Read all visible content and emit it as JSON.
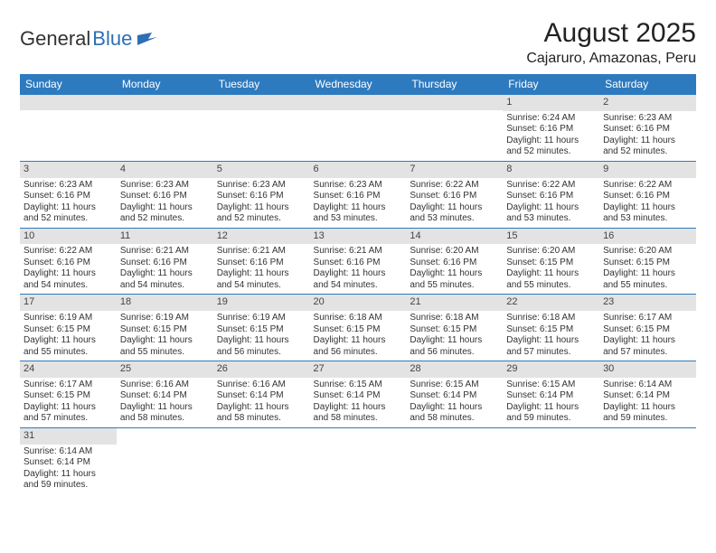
{
  "brand": {
    "part1": "General",
    "part2": "Blue"
  },
  "title": "August 2025",
  "location": "Cajaruro, Amazonas, Peru",
  "colors": {
    "header_bg": "#2d7abf",
    "header_text": "#ffffff",
    "grid_line": "#2d7abf",
    "daynum_bg": "#e3e3e3",
    "brand_blue": "#2d6fb5",
    "text": "#333333",
    "background": "#ffffff"
  },
  "days_of_week": [
    "Sunday",
    "Monday",
    "Tuesday",
    "Wednesday",
    "Thursday",
    "Friday",
    "Saturday"
  ],
  "weeks": [
    [
      {
        "n": "",
        "sunrise": "",
        "sunset": "",
        "daylight": ""
      },
      {
        "n": "",
        "sunrise": "",
        "sunset": "",
        "daylight": ""
      },
      {
        "n": "",
        "sunrise": "",
        "sunset": "",
        "daylight": ""
      },
      {
        "n": "",
        "sunrise": "",
        "sunset": "",
        "daylight": ""
      },
      {
        "n": "",
        "sunrise": "",
        "sunset": "",
        "daylight": ""
      },
      {
        "n": "1",
        "sunrise": "Sunrise: 6:24 AM",
        "sunset": "Sunset: 6:16 PM",
        "daylight": "Daylight: 11 hours and 52 minutes."
      },
      {
        "n": "2",
        "sunrise": "Sunrise: 6:23 AM",
        "sunset": "Sunset: 6:16 PM",
        "daylight": "Daylight: 11 hours and 52 minutes."
      }
    ],
    [
      {
        "n": "3",
        "sunrise": "Sunrise: 6:23 AM",
        "sunset": "Sunset: 6:16 PM",
        "daylight": "Daylight: 11 hours and 52 minutes."
      },
      {
        "n": "4",
        "sunrise": "Sunrise: 6:23 AM",
        "sunset": "Sunset: 6:16 PM",
        "daylight": "Daylight: 11 hours and 52 minutes."
      },
      {
        "n": "5",
        "sunrise": "Sunrise: 6:23 AM",
        "sunset": "Sunset: 6:16 PM",
        "daylight": "Daylight: 11 hours and 52 minutes."
      },
      {
        "n": "6",
        "sunrise": "Sunrise: 6:23 AM",
        "sunset": "Sunset: 6:16 PM",
        "daylight": "Daylight: 11 hours and 53 minutes."
      },
      {
        "n": "7",
        "sunrise": "Sunrise: 6:22 AM",
        "sunset": "Sunset: 6:16 PM",
        "daylight": "Daylight: 11 hours and 53 minutes."
      },
      {
        "n": "8",
        "sunrise": "Sunrise: 6:22 AM",
        "sunset": "Sunset: 6:16 PM",
        "daylight": "Daylight: 11 hours and 53 minutes."
      },
      {
        "n": "9",
        "sunrise": "Sunrise: 6:22 AM",
        "sunset": "Sunset: 6:16 PM",
        "daylight": "Daylight: 11 hours and 53 minutes."
      }
    ],
    [
      {
        "n": "10",
        "sunrise": "Sunrise: 6:22 AM",
        "sunset": "Sunset: 6:16 PM",
        "daylight": "Daylight: 11 hours and 54 minutes."
      },
      {
        "n": "11",
        "sunrise": "Sunrise: 6:21 AM",
        "sunset": "Sunset: 6:16 PM",
        "daylight": "Daylight: 11 hours and 54 minutes."
      },
      {
        "n": "12",
        "sunrise": "Sunrise: 6:21 AM",
        "sunset": "Sunset: 6:16 PM",
        "daylight": "Daylight: 11 hours and 54 minutes."
      },
      {
        "n": "13",
        "sunrise": "Sunrise: 6:21 AM",
        "sunset": "Sunset: 6:16 PM",
        "daylight": "Daylight: 11 hours and 54 minutes."
      },
      {
        "n": "14",
        "sunrise": "Sunrise: 6:20 AM",
        "sunset": "Sunset: 6:16 PM",
        "daylight": "Daylight: 11 hours and 55 minutes."
      },
      {
        "n": "15",
        "sunrise": "Sunrise: 6:20 AM",
        "sunset": "Sunset: 6:15 PM",
        "daylight": "Daylight: 11 hours and 55 minutes."
      },
      {
        "n": "16",
        "sunrise": "Sunrise: 6:20 AM",
        "sunset": "Sunset: 6:15 PM",
        "daylight": "Daylight: 11 hours and 55 minutes."
      }
    ],
    [
      {
        "n": "17",
        "sunrise": "Sunrise: 6:19 AM",
        "sunset": "Sunset: 6:15 PM",
        "daylight": "Daylight: 11 hours and 55 minutes."
      },
      {
        "n": "18",
        "sunrise": "Sunrise: 6:19 AM",
        "sunset": "Sunset: 6:15 PM",
        "daylight": "Daylight: 11 hours and 55 minutes."
      },
      {
        "n": "19",
        "sunrise": "Sunrise: 6:19 AM",
        "sunset": "Sunset: 6:15 PM",
        "daylight": "Daylight: 11 hours and 56 minutes."
      },
      {
        "n": "20",
        "sunrise": "Sunrise: 6:18 AM",
        "sunset": "Sunset: 6:15 PM",
        "daylight": "Daylight: 11 hours and 56 minutes."
      },
      {
        "n": "21",
        "sunrise": "Sunrise: 6:18 AM",
        "sunset": "Sunset: 6:15 PM",
        "daylight": "Daylight: 11 hours and 56 minutes."
      },
      {
        "n": "22",
        "sunrise": "Sunrise: 6:18 AM",
        "sunset": "Sunset: 6:15 PM",
        "daylight": "Daylight: 11 hours and 57 minutes."
      },
      {
        "n": "23",
        "sunrise": "Sunrise: 6:17 AM",
        "sunset": "Sunset: 6:15 PM",
        "daylight": "Daylight: 11 hours and 57 minutes."
      }
    ],
    [
      {
        "n": "24",
        "sunrise": "Sunrise: 6:17 AM",
        "sunset": "Sunset: 6:15 PM",
        "daylight": "Daylight: 11 hours and 57 minutes."
      },
      {
        "n": "25",
        "sunrise": "Sunrise: 6:16 AM",
        "sunset": "Sunset: 6:14 PM",
        "daylight": "Daylight: 11 hours and 58 minutes."
      },
      {
        "n": "26",
        "sunrise": "Sunrise: 6:16 AM",
        "sunset": "Sunset: 6:14 PM",
        "daylight": "Daylight: 11 hours and 58 minutes."
      },
      {
        "n": "27",
        "sunrise": "Sunrise: 6:15 AM",
        "sunset": "Sunset: 6:14 PM",
        "daylight": "Daylight: 11 hours and 58 minutes."
      },
      {
        "n": "28",
        "sunrise": "Sunrise: 6:15 AM",
        "sunset": "Sunset: 6:14 PM",
        "daylight": "Daylight: 11 hours and 58 minutes."
      },
      {
        "n": "29",
        "sunrise": "Sunrise: 6:15 AM",
        "sunset": "Sunset: 6:14 PM",
        "daylight": "Daylight: 11 hours and 59 minutes."
      },
      {
        "n": "30",
        "sunrise": "Sunrise: 6:14 AM",
        "sunset": "Sunset: 6:14 PM",
        "daylight": "Daylight: 11 hours and 59 minutes."
      }
    ],
    [
      {
        "n": "31",
        "sunrise": "Sunrise: 6:14 AM",
        "sunset": "Sunset: 6:14 PM",
        "daylight": "Daylight: 11 hours and 59 minutes."
      },
      {
        "n": "",
        "sunrise": "",
        "sunset": "",
        "daylight": ""
      },
      {
        "n": "",
        "sunrise": "",
        "sunset": "",
        "daylight": ""
      },
      {
        "n": "",
        "sunrise": "",
        "sunset": "",
        "daylight": ""
      },
      {
        "n": "",
        "sunrise": "",
        "sunset": "",
        "daylight": ""
      },
      {
        "n": "",
        "sunrise": "",
        "sunset": "",
        "daylight": ""
      },
      {
        "n": "",
        "sunrise": "",
        "sunset": "",
        "daylight": ""
      }
    ]
  ]
}
